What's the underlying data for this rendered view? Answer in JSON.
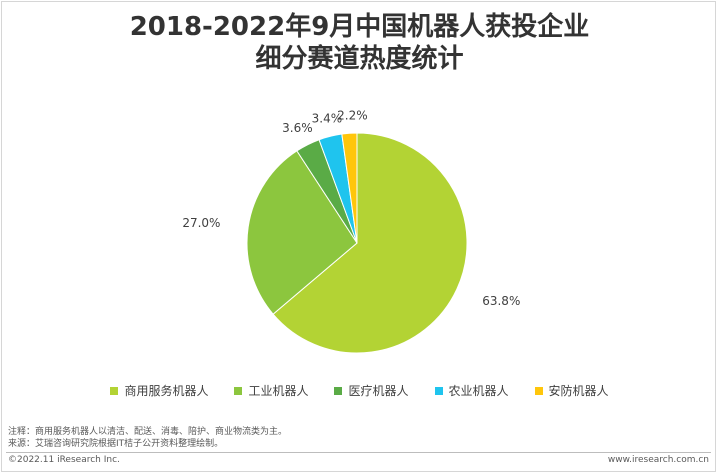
{
  "title_line1": "2018-2022年9月中国机器人获投企业",
  "title_line2": "细分赛道热度统计",
  "chart_data": {
    "type": "pie",
    "title": "2018-2022年9月中国机器人获投企业细分赛道热度统计",
    "slices": [
      {
        "name": "商用服务机器人",
        "value": 63.8,
        "label": "63.8%",
        "color": "#b3d334"
      },
      {
        "name": "工业机器人",
        "value": 27.0,
        "label": "27.0%",
        "color": "#8cc63e"
      },
      {
        "name": "医疗机器人",
        "value": 3.6,
        "label": "3.6%",
        "color": "#5aab46"
      },
      {
        "name": "农业机器人",
        "value": 3.4,
        "label": "3.4%",
        "color": "#1fc4ee"
      },
      {
        "name": "安防机器人",
        "value": 2.2,
        "label": "2.2%",
        "color": "#ffc60b"
      }
    ],
    "start": "12 o'clock",
    "direction": "clockwise",
    "legend_position": "bottom"
  },
  "notes": {
    "note": "注释：商用服务机器人以清洁、配送、消毒、陪护、商业物流类为主。",
    "source": "来源：艾瑞咨询研究院根据IT桔子公开资料整理绘制。"
  },
  "footer": {
    "left": "©2022.11 iResearch Inc.",
    "right": "www.iresearch.com.cn"
  }
}
